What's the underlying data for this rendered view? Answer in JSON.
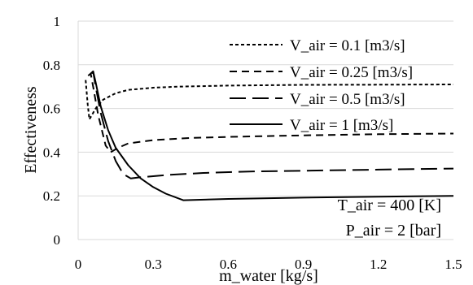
{
  "chart_data": {
    "type": "line",
    "title": "",
    "xlabel": "m_water [kg/s]",
    "ylabel": "Effectiveness",
    "xlim": [
      0,
      1.5
    ],
    "ylim": [
      0,
      1
    ],
    "x_ticks": [
      "0",
      "0.3",
      "0.6",
      "0.9",
      "1.2",
      "1.5"
    ],
    "y_ticks": [
      "0",
      "0.2",
      "0.4",
      "0.6",
      "0.8",
      "1"
    ],
    "grid": "horizontal",
    "legend_position": "top-right",
    "series": [
      {
        "name": "V_air = 0.1 [m3/s]",
        "line_style": "dotted",
        "x": [
          0.03,
          0.038,
          0.045,
          0.055,
          0.07,
          0.1,
          0.15,
          0.2,
          0.3,
          0.4,
          0.6,
          0.9,
          1.2,
          1.5
        ],
        "y": [
          0.73,
          0.62,
          0.55,
          0.57,
          0.6,
          0.64,
          0.67,
          0.685,
          0.695,
          0.7,
          0.705,
          0.708,
          0.709,
          0.71
        ]
      },
      {
        "name": "V_air = 0.25 [m3/s]",
        "line_style": "short-dash",
        "x": [
          0.04,
          0.05,
          0.06,
          0.08,
          0.11,
          0.13,
          0.16,
          0.2,
          0.3,
          0.45,
          0.6,
          0.9,
          1.2,
          1.5
        ],
        "y": [
          0.75,
          0.76,
          0.7,
          0.57,
          0.43,
          0.4,
          0.42,
          0.44,
          0.455,
          0.465,
          0.47,
          0.477,
          0.482,
          0.485
        ]
      },
      {
        "name": "V_air = 0.5 [m3/s]",
        "line_style": "long-dash",
        "x": [
          0.05,
          0.06,
          0.07,
          0.09,
          0.12,
          0.15,
          0.18,
          0.21,
          0.25,
          0.35,
          0.5,
          0.7,
          0.9,
          1.2,
          1.5
        ],
        "y": [
          0.76,
          0.77,
          0.7,
          0.58,
          0.45,
          0.36,
          0.3,
          0.28,
          0.285,
          0.295,
          0.305,
          0.312,
          0.315,
          0.32,
          0.325
        ]
      },
      {
        "name": "V_air = 1 [m3/s]",
        "line_style": "solid",
        "x": [
          0.055,
          0.06,
          0.07,
          0.09,
          0.12,
          0.15,
          0.2,
          0.25,
          0.3,
          0.35,
          0.42,
          0.6,
          0.9,
          1.2,
          1.5
        ],
        "y": [
          0.76,
          0.77,
          0.72,
          0.61,
          0.5,
          0.42,
          0.34,
          0.28,
          0.24,
          0.21,
          0.18,
          0.186,
          0.192,
          0.196,
          0.2
        ]
      }
    ],
    "annotations": [
      "T_air = 400 [K]",
      "P_air = 2 [bar]"
    ]
  }
}
